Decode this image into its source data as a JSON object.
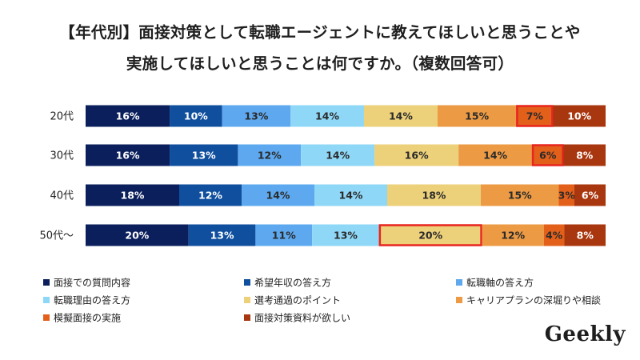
{
  "title": {
    "line1": "【年代別】面接対策として転職エージェントに教えてほしいと思うことや",
    "line2": "実施してほしいと思うことは何ですか。（複数回答可）"
  },
  "logo": "Geekly",
  "chart_data": {
    "type": "bar",
    "orientation": "horizontal-stacked-100",
    "categories": [
      "20代",
      "30代",
      "40代",
      "50代～"
    ],
    "series": [
      {
        "name": "面接での質問内容",
        "color": "#0b1f5c",
        "values": [
          16,
          16,
          18,
          20
        ],
        "labels": [
          "16%",
          "16%",
          "18%",
          "20%"
        ]
      },
      {
        "name": "希望年収の答え方",
        "color": "#104f9e",
        "values": [
          10,
          13,
          12,
          13
        ],
        "labels": [
          "10%",
          "13%",
          "12%",
          "13%"
        ]
      },
      {
        "name": "転職軸の答え方",
        "color": "#5da8ef",
        "values": [
          13,
          12,
          14,
          11
        ],
        "labels": [
          "13%",
          "12%",
          "14%",
          "11%"
        ]
      },
      {
        "name": "転職理由の答え方",
        "color": "#8fd7f7",
        "values": [
          14,
          14,
          14,
          13
        ],
        "labels": [
          "14%",
          "14%",
          "14%",
          "13%"
        ]
      },
      {
        "name": "選考通過のポイント",
        "color": "#ecd07a",
        "values": [
          14,
          16,
          18,
          20
        ],
        "labels": [
          "14%",
          "16%",
          "18%",
          "20%"
        ]
      },
      {
        "name": "キャリアプランの深堀りや相談",
        "color": "#ec9a44",
        "values": [
          15,
          14,
          15,
          12
        ],
        "labels": [
          "15%",
          "14%",
          "15%",
          "12%"
        ]
      },
      {
        "name": "模擬面接の実施",
        "color": "#e3601b",
        "values": [
          7,
          6,
          3,
          4
        ],
        "labels": [
          "7%",
          "6%",
          "3%",
          "4%"
        ]
      },
      {
        "name": "面接対策資料が欲しい",
        "color": "#a8360f",
        "values": [
          10,
          8,
          6,
          8
        ],
        "labels": [
          "10%",
          "8%",
          "6%",
          "8%"
        ]
      }
    ],
    "highlights": [
      {
        "category": "20代",
        "series": "模擬面接の実施"
      },
      {
        "category": "30代",
        "series": "模擬面接の実施"
      },
      {
        "category": "50代～",
        "series": "選考通過のポイント"
      }
    ],
    "highlight_color": "#e8251f",
    "legend_position": "bottom",
    "xlim": [
      0,
      100
    ]
  }
}
